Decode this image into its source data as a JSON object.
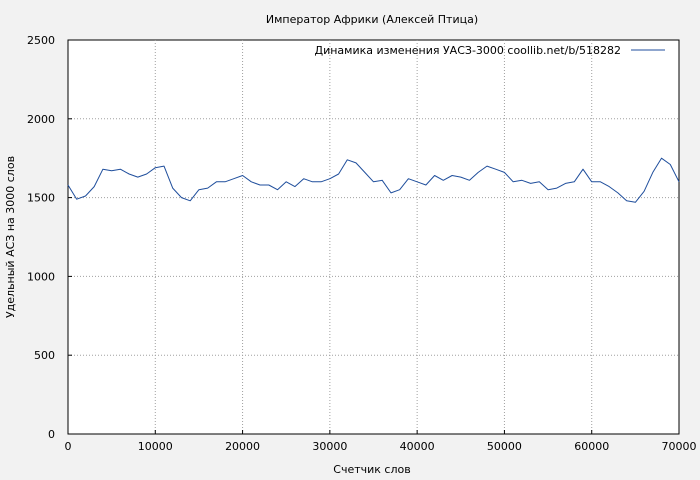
{
  "chart_data": {
    "type": "line",
    "title": "Император Африки (Алексей Птица)",
    "xlabel": "Счетчик слов",
    "ylabel": "Удельный АСЗ на 3000 слов",
    "xlim": [
      0,
      70000
    ],
    "ylim": [
      0,
      2500
    ],
    "x_ticks": [
      0,
      10000,
      20000,
      30000,
      40000,
      50000,
      60000,
      70000
    ],
    "y_ticks": [
      0,
      500,
      1000,
      1500,
      2000,
      2500
    ],
    "x_tick_labels": [
      "0",
      "10000",
      "20000",
      "30000",
      "40000",
      "50000",
      "60000",
      "70000"
    ],
    "y_tick_labels": [
      "0",
      "500",
      "1000",
      "1500",
      "2000",
      "2500"
    ],
    "grid": true,
    "legend_position": "top-right",
    "series": [
      {
        "name": "Динамика изменения УАСЗ-3000  coollib.net/b/518282",
        "color": "#1f4e9c",
        "x": [
          0,
          1000,
          2000,
          3000,
          4000,
          5000,
          6000,
          7000,
          8000,
          9000,
          10000,
          11000,
          12000,
          13000,
          14000,
          15000,
          16000,
          17000,
          18000,
          19000,
          20000,
          21000,
          22000,
          23000,
          24000,
          25000,
          26000,
          27000,
          28000,
          29000,
          30000,
          31000,
          32000,
          33000,
          34000,
          35000,
          36000,
          37000,
          38000,
          39000,
          40000,
          41000,
          42000,
          43000,
          44000,
          45000,
          46000,
          47000,
          48000,
          49000,
          50000,
          51000,
          52000,
          53000,
          54000,
          55000,
          56000,
          57000,
          58000,
          59000,
          60000,
          61000,
          62000,
          63000,
          64000,
          65000,
          66000,
          67000,
          68000,
          69000,
          70000
        ],
        "values": [
          1580,
          1490,
          1510,
          1570,
          1680,
          1670,
          1680,
          1650,
          1630,
          1650,
          1690,
          1700,
          1560,
          1500,
          1480,
          1550,
          1560,
          1600,
          1600,
          1620,
          1640,
          1600,
          1580,
          1580,
          1550,
          1600,
          1570,
          1620,
          1600,
          1600,
          1620,
          1650,
          1740,
          1720,
          1660,
          1600,
          1610,
          1530,
          1550,
          1620,
          1600,
          1580,
          1640,
          1610,
          1640,
          1630,
          1610,
          1660,
          1700,
          1680,
          1660,
          1600,
          1610,
          1590,
          1600,
          1550,
          1560,
          1590,
          1600,
          1680,
          1600,
          1600,
          1570,
          1530,
          1480,
          1470,
          1540,
          1660,
          1750,
          1710,
          1600
        ]
      }
    ]
  }
}
